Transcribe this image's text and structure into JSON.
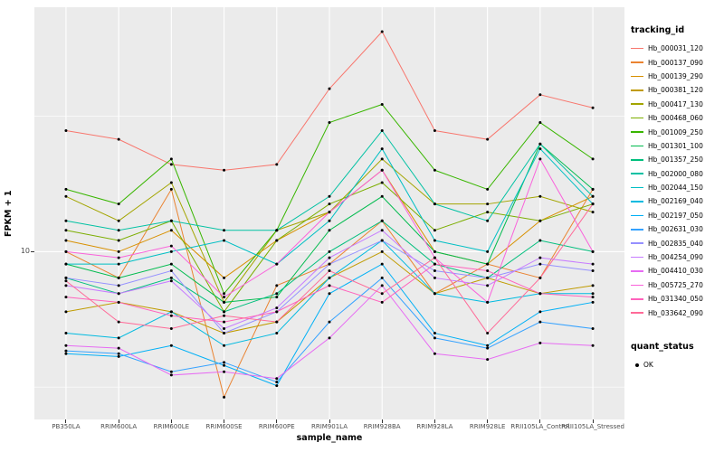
{
  "chart_data": {
    "type": "line",
    "title": "",
    "xlabel": "sample_name",
    "ylabel": "FPKM + 1",
    "y_scale": "log10",
    "ylim": [
      2.4,
      80
    ],
    "yticks": [
      {
        "value": 10,
        "label": "10"
      }
    ],
    "y_minor": [
      3.162,
      31.62
    ],
    "panel_bg": "#EBEBEB",
    "grid_color": "#FFFFFF",
    "point_color": "#000000",
    "legend": {
      "color_title": "tracking_id",
      "shape_title": "quant_status",
      "shape_items": [
        {
          "label": "OK"
        }
      ],
      "position": "right"
    },
    "categories": [
      "PB350LA",
      "RRIM600LA",
      "RRIM600LE",
      "RRIM600SE",
      "RRIM600PE",
      "RRIM901LA",
      "RRIM928BA",
      "RRIM928LA",
      "RRIM928LE",
      "RRII105LA_Control",
      "RRII105LA_Stressed"
    ],
    "series": [
      {
        "name": "Hb_000031_120",
        "color": "#F8766D",
        "values": [
          28,
          26,
          21,
          20,
          21,
          40,
          65,
          28,
          26,
          38,
          34
        ]
      },
      {
        "name": "Hb_000137_090",
        "color": "#EA8331",
        "values": [
          10,
          8,
          17,
          2.9,
          7.5,
          9,
          13,
          7,
          9,
          8,
          17
        ]
      },
      {
        "name": "Hb_000139_290",
        "color": "#D89000",
        "values": [
          11,
          10,
          12,
          8,
          11,
          14,
          20,
          10,
          9,
          13,
          16
        ]
      },
      {
        "name": "Hb_000381_120",
        "color": "#C09B00",
        "values": [
          6,
          6.5,
          6,
          5,
          5.5,
          8,
          10,
          7,
          8,
          7,
          7.5
        ]
      },
      {
        "name": "Hb_000417_130",
        "color": "#A3A500",
        "values": [
          16,
          13,
          18,
          6.5,
          12,
          14,
          22,
          15,
          15,
          16,
          14
        ]
      },
      {
        "name": "Hb_000468_060",
        "color": "#7CAE00",
        "values": [
          12,
          11,
          13,
          6,
          11,
          15,
          18,
          12,
          14,
          13,
          15
        ]
      },
      {
        "name": "Hb_001009_250",
        "color": "#39B600",
        "values": [
          17,
          15,
          22,
          7,
          12,
          30,
          35,
          20,
          17,
          30,
          22
        ]
      },
      {
        "name": "Hb_001301_100",
        "color": "#00BB4E",
        "values": [
          9,
          8,
          9,
          6.5,
          6.8,
          12,
          16,
          10,
          9,
          25,
          17
        ]
      },
      {
        "name": "Hb_001357_250",
        "color": "#00BF7D",
        "values": [
          8,
          7,
          8,
          6,
          7,
          10,
          13,
          9,
          8,
          11,
          10
        ]
      },
      {
        "name": "Hb_002000_080",
        "color": "#00C1A3",
        "values": [
          13,
          12,
          13,
          12,
          12,
          16,
          28,
          15,
          13,
          25,
          16
        ]
      },
      {
        "name": "Hb_002044_150",
        "color": "#00BFC4",
        "values": [
          9,
          9,
          10,
          11,
          9,
          13,
          24,
          11,
          10,
          24,
          15
        ]
      },
      {
        "name": "Hb_002169_040",
        "color": "#00BAE0",
        "values": [
          5,
          4.8,
          6,
          4.5,
          5,
          8,
          11,
          7,
          6.5,
          7,
          7
        ]
      },
      {
        "name": "Hb_002197_050",
        "color": "#00B0F6",
        "values": [
          4.2,
          4.1,
          4.5,
          3.8,
          3.2,
          7,
          9,
          5,
          4.5,
          6,
          6.5
        ]
      },
      {
        "name": "Hb_002631_030",
        "color": "#35A2FF",
        "values": [
          4.3,
          4.2,
          3.6,
          3.9,
          3.3,
          5.5,
          8,
          4.8,
          4.4,
          5.5,
          5.2
        ]
      },
      {
        "name": "Hb_002835_040",
        "color": "#9590FF",
        "values": [
          8,
          7.5,
          8.5,
          5,
          6,
          9,
          11,
          8.5,
          8,
          9,
          8.5
        ]
      },
      {
        "name": "Hb_004254_090",
        "color": "#C77CFF",
        "values": [
          7.5,
          7,
          7.8,
          5.2,
          6.2,
          9.5,
          12,
          8,
          7.5,
          9.5,
          9
        ]
      },
      {
        "name": "Hb_004410_030",
        "color": "#E76BF3",
        "values": [
          4.5,
          4.4,
          3.5,
          3.6,
          3.4,
          4.8,
          7.5,
          4.2,
          4,
          4.6,
          4.5
        ]
      },
      {
        "name": "Hb_005725_270",
        "color": "#FA62DB",
        "values": [
          10,
          9.5,
          10.5,
          6.8,
          9,
          14,
          20,
          9.5,
          6.5,
          22,
          10
        ]
      },
      {
        "name": "Hb_031340_050",
        "color": "#FF62BC",
        "values": [
          6.8,
          6.5,
          5.8,
          5.5,
          6,
          7.5,
          6.5,
          9,
          8.5,
          7,
          6.8
        ]
      },
      {
        "name": "Hb_033642_090",
        "color": "#FF6A98",
        "values": [
          7.8,
          5.5,
          5.2,
          5.8,
          5.5,
          8.5,
          7,
          9.5,
          5,
          8,
          15
        ]
      }
    ]
  }
}
